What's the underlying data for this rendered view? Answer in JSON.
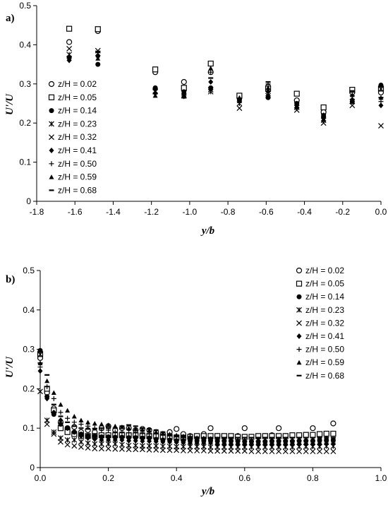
{
  "panels": [
    {
      "panel_label": "a)",
      "chart_data": {
        "type": "scatter",
        "xlabel": "y/b",
        "ylabel": "U'/U",
        "xlim": [
          -1.8,
          0.0
        ],
        "ylim": [
          0,
          0.5
        ],
        "xticks": [
          "-1.8",
          "-1.6",
          "-1.4",
          "-1.2",
          "-1.0",
          "-0.8",
          "-0.6",
          "-0.4",
          "-0.2",
          "0.0"
        ],
        "xtick_values": [
          -1.8,
          -1.6,
          -1.4,
          -1.2,
          -1.0,
          -0.8,
          -0.6,
          -0.4,
          -0.2,
          0.0
        ],
        "yticks": [
          "0",
          "0.1",
          "0.2",
          "0.3",
          "0.4",
          "0.5"
        ],
        "ytick_values": [
          0,
          0.1,
          0.2,
          0.3,
          0.4,
          0.5
        ],
        "grid": false,
        "legend_position": "left",
        "x": [
          -1.63,
          -1.48,
          -1.18,
          -1.03,
          -0.89,
          -0.74,
          -0.59,
          -0.44,
          -0.3,
          -0.15,
          0.0
        ],
        "series": [
          {
            "name": "z/H = 0.02",
            "marker": "circle-open",
            "values": [
              0.407,
              0.435,
              0.33,
              0.305,
              0.33,
              0.265,
              0.293,
              0.258,
              0.228,
              0.278,
              0.278
            ]
          },
          {
            "name": "z/H = 0.05",
            "marker": "square-open",
            "values": [
              0.441,
              0.44,
              0.337,
              0.29,
              0.352,
              0.27,
              0.288,
              0.275,
              0.24,
              0.285,
              0.288
            ]
          },
          {
            "name": "z/H = 0.14",
            "marker": "circle-filled",
            "values": [
              0.368,
              0.35,
              0.29,
              0.28,
              0.29,
              0.26,
              0.265,
              0.25,
              0.217,
              0.255,
              0.297
            ]
          },
          {
            "name": "z/H = 0.23",
            "marker": "star",
            "values": [
              0.375,
              0.378,
              0.28,
              0.27,
              0.28,
              0.25,
              0.27,
              0.24,
              0.207,
              0.255,
              0.287
            ]
          },
          {
            "name": "z/H = 0.32",
            "marker": "x",
            "values": [
              0.39,
              0.385,
              0.282,
              0.277,
              0.285,
              0.238,
              0.275,
              0.233,
              0.2,
              0.245,
              0.193
            ]
          },
          {
            "name": "z/H = 0.41",
            "marker": "diamond-filled",
            "values": [
              0.36,
              0.37,
              0.276,
              0.268,
              0.305,
              0.258,
              0.28,
              0.24,
              0.22,
              0.26,
              0.245
            ]
          },
          {
            "name": "z/H = 0.50",
            "marker": "plus",
            "values": [
              0.365,
              0.38,
              0.285,
              0.272,
              0.33,
              0.252,
              0.3,
              0.245,
              0.215,
              0.27,
              0.255
            ]
          },
          {
            "name": "z/H = 0.59",
            "marker": "triangle-filled",
            "values": [
              0.365,
              0.365,
              0.27,
              0.268,
              0.34,
              0.265,
              0.29,
              0.243,
              0.21,
              0.272,
              0.265
            ]
          },
          {
            "name": "z/H = 0.68",
            "marker": "dash",
            "values": [
              0.37,
              0.383,
              0.288,
              0.265,
              0.315,
              0.262,
              0.305,
              0.253,
              0.223,
              0.282,
              0.265
            ]
          }
        ]
      }
    },
    {
      "panel_label": "b)",
      "chart_data": {
        "type": "scatter",
        "xlabel": "y/b",
        "ylabel": "U'/U",
        "xlim": [
          0.0,
          1.0
        ],
        "ylim": [
          0,
          0.5
        ],
        "xticks": [
          "0.0",
          "0.2",
          "0.4",
          "0.6",
          "0.8",
          "1.0"
        ],
        "xtick_values": [
          0.0,
          0.2,
          0.4,
          0.6,
          0.8,
          1.0
        ],
        "yticks": [
          "0",
          "0.1",
          "0.2",
          "0.3",
          "0.4",
          "0.5"
        ],
        "ytick_values": [
          0,
          0.1,
          0.2,
          0.3,
          0.4,
          0.5
        ],
        "grid": false,
        "legend_position": "top-right",
        "x": [
          0.0,
          0.02,
          0.04,
          0.06,
          0.08,
          0.1,
          0.12,
          0.14,
          0.16,
          0.18,
          0.2,
          0.22,
          0.24,
          0.26,
          0.28,
          0.3,
          0.32,
          0.34,
          0.36,
          0.38,
          0.4,
          0.42,
          0.44,
          0.46,
          0.48,
          0.5,
          0.52,
          0.54,
          0.56,
          0.58,
          0.6,
          0.62,
          0.64,
          0.66,
          0.68,
          0.7,
          0.72,
          0.74,
          0.76,
          0.78,
          0.8,
          0.82,
          0.84,
          0.86
        ],
        "series": [
          {
            "name": "z/H = 0.02",
            "marker": "circle-open",
            "values": [
              0.278,
              0.19,
              0.15,
              0.115,
              0.1,
              0.103,
              0.09,
              0.095,
              0.09,
              0.1,
              0.105,
              0.095,
              0.1,
              0.1,
              0.095,
              0.098,
              0.095,
              0.09,
              0.085,
              0.09,
              0.098,
              0.085,
              0.08,
              0.08,
              0.085,
              0.1,
              0.08,
              0.078,
              0.078,
              0.08,
              0.1,
              0.078,
              0.078,
              0.08,
              0.082,
              0.1,
              0.08,
              0.08,
              0.08,
              0.082,
              0.1,
              0.082,
              0.085,
              0.112
            ]
          },
          {
            "name": "z/H = 0.05",
            "marker": "square-open",
            "values": [
              0.288,
              0.2,
              0.145,
              0.1,
              0.09,
              0.085,
              0.08,
              0.08,
              0.08,
              0.082,
              0.082,
              0.082,
              0.082,
              0.082,
              0.082,
              0.08,
              0.08,
              0.08,
              0.078,
              0.078,
              0.076,
              0.076,
              0.078,
              0.08,
              0.08,
              0.08,
              0.08,
              0.08,
              0.08,
              0.078,
              0.078,
              0.078,
              0.08,
              0.08,
              0.08,
              0.08,
              0.08,
              0.082,
              0.082,
              0.083,
              0.083,
              0.085,
              0.086,
              0.086
            ]
          },
          {
            "name": "z/H = 0.14",
            "marker": "circle-filled",
            "values": [
              0.297,
              0.18,
              0.135,
              0.11,
              0.1,
              0.09,
              0.085,
              0.08,
              0.08,
              0.078,
              0.078,
              0.077,
              0.077,
              0.076,
              0.076,
              0.075,
              0.075,
              0.072,
              0.07,
              0.07,
              0.068,
              0.068,
              0.068,
              0.068,
              0.068,
              0.068,
              0.067,
              0.067,
              0.067,
              0.067,
              0.066,
              0.066,
              0.066,
              0.066,
              0.067,
              0.067,
              0.067,
              0.067,
              0.068,
              0.068,
              0.068,
              0.07,
              0.07,
              0.07
            ]
          },
          {
            "name": "z/H = 0.23",
            "marker": "star",
            "values": [
              0.287,
              0.12,
              0.09,
              0.075,
              0.07,
              0.07,
              0.065,
              0.062,
              0.06,
              0.06,
              0.06,
              0.06,
              0.058,
              0.056,
              0.056,
              0.055,
              0.055,
              0.055,
              0.054,
              0.054,
              0.053,
              0.053,
              0.053,
              0.053,
              0.053,
              0.052,
              0.052,
              0.052,
              0.052,
              0.052,
              0.052,
              0.052,
              0.052,
              0.052,
              0.052,
              0.052,
              0.052,
              0.052,
              0.053,
              0.053,
              0.053,
              0.053,
              0.054,
              0.054
            ]
          },
          {
            "name": "z/H = 0.32",
            "marker": "x",
            "values": [
              0.193,
              0.11,
              0.085,
              0.065,
              0.058,
              0.055,
              0.052,
              0.05,
              0.048,
              0.048,
              0.048,
              0.047,
              0.047,
              0.046,
              0.046,
              0.046,
              0.045,
              0.045,
              0.044,
              0.044,
              0.044,
              0.043,
              0.043,
              0.043,
              0.043,
              0.042,
              0.042,
              0.042,
              0.042,
              0.042,
              0.042,
              0.041,
              0.041,
              0.041,
              0.041,
              0.041,
              0.041,
              0.041,
              0.041,
              0.041,
              0.041,
              0.041,
              0.041,
              0.041
            ]
          },
          {
            "name": "z/H = 0.41",
            "marker": "diamond-filled",
            "values": [
              0.245,
              0.175,
              0.14,
              0.12,
              0.1,
              0.09,
              0.08,
              0.075,
              0.072,
              0.07,
              0.07,
              0.07,
              0.07,
              0.068,
              0.068,
              0.067,
              0.067,
              0.066,
              0.065,
              0.065,
              0.064,
              0.063,
              0.062,
              0.062,
              0.062,
              0.062,
              0.06,
              0.06,
              0.06,
              0.06,
              0.06,
              0.06,
              0.06,
              0.06,
              0.06,
              0.06,
              0.06,
              0.06,
              0.06,
              0.06,
              0.06,
              0.06,
              0.06,
              0.06
            ]
          },
          {
            "name": "z/H = 0.50",
            "marker": "plus",
            "values": [
              0.255,
              0.205,
              0.175,
              0.14,
              0.125,
              0.115,
              0.11,
              0.105,
              0.1,
              0.095,
              0.095,
              0.09,
              0.09,
              0.088,
              0.088,
              0.088,
              0.085,
              0.085,
              0.082,
              0.08,
              0.078,
              0.076,
              0.074,
              0.074,
              0.073,
              0.072,
              0.071,
              0.07,
              0.07,
              0.069,
              0.068,
              0.068,
              0.068,
              0.068,
              0.068,
              0.068,
              0.068,
              0.068,
              0.068,
              0.068,
              0.068,
              0.068,
              0.068,
              0.068
            ]
          },
          {
            "name": "z/H = 0.59",
            "marker": "triangle-filled",
            "values": [
              0.265,
              0.22,
              0.19,
              0.16,
              0.145,
              0.13,
              0.12,
              0.115,
              0.112,
              0.11,
              0.108,
              0.105,
              0.103,
              0.1,
              0.098,
              0.096,
              0.094,
              0.09,
              0.087,
              0.085,
              0.082,
              0.08,
              0.078,
              0.076,
              0.075,
              0.074,
              0.073,
              0.072,
              0.071,
              0.07,
              0.07,
              0.07,
              0.07,
              0.069,
              0.069,
              0.069,
              0.069,
              0.069,
              0.069,
              0.069,
              0.069,
              0.069,
              0.069,
              0.069
            ]
          },
          {
            "name": "z/H = 0.68",
            "marker": "dash",
            "values": [
              0.265,
              0.235,
              0.16,
              0.13,
              0.115,
              0.105,
              0.1,
              0.098,
              0.098,
              0.1,
              0.1,
              0.1,
              0.105,
              0.108,
              0.105,
              0.1,
              0.098,
              0.095,
              0.09,
              0.085,
              0.082,
              0.08,
              0.078,
              0.077,
              0.076,
              0.076,
              0.076,
              0.076,
              0.076,
              0.076,
              0.076,
              0.076,
              0.076,
              0.076,
              0.076,
              0.076,
              0.076,
              0.076,
              0.076,
              0.076,
              0.076,
              0.076,
              0.076,
              0.076
            ]
          }
        ]
      }
    }
  ]
}
